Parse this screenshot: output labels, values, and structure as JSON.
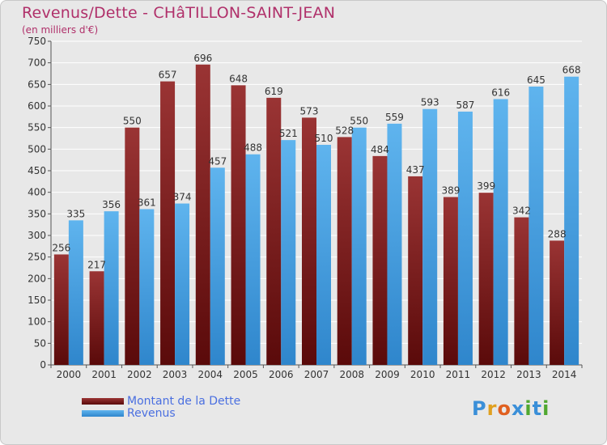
{
  "header": {
    "title": "Revenus/Dette - CHâTILLON-SAINT-JEAN",
    "subtitle": "(en milliers d'€)"
  },
  "logo": {
    "text": "Proxiti"
  },
  "colors": {
    "dette": "#6b1010",
    "revenus": "#3a9be0",
    "grid": "#ffffff",
    "axis_text": "#333333"
  },
  "chart_data": {
    "type": "bar",
    "categories": [
      "2000",
      "2001",
      "2002",
      "2003",
      "2004",
      "2005",
      "2006",
      "2007",
      "2008",
      "2009",
      "2010",
      "2011",
      "2012",
      "2013",
      "2014"
    ],
    "series": [
      {
        "name": "Montant de la Dette",
        "values": [
          256,
          217,
          550,
          657,
          696,
          648,
          619,
          573,
          528,
          484,
          437,
          389,
          399,
          342,
          288
        ]
      },
      {
        "name": "Revenus",
        "values": [
          335,
          356,
          361,
          374,
          457,
          488,
          521,
          510,
          550,
          559,
          593,
          587,
          616,
          645,
          668
        ]
      }
    ],
    "title": "Revenus/Dette - CHâTILLON-SAINT-JEAN",
    "subtitle": "(en milliers d'€)",
    "xlabel": "",
    "ylabel": "",
    "ylim": [
      0,
      750
    ],
    "yticks": [
      0,
      50,
      100,
      150,
      200,
      250,
      300,
      350,
      400,
      450,
      500,
      550,
      600,
      650,
      700,
      750
    ],
    "grid": true,
    "legend_position": "bottom-left"
  }
}
